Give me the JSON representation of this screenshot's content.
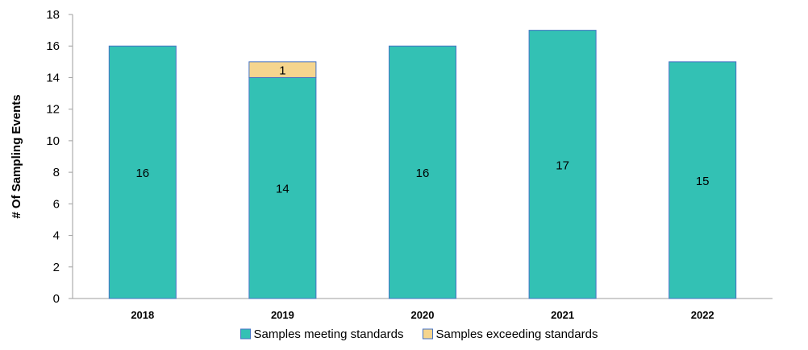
{
  "chart_data": {
    "type": "bar",
    "stacked": true,
    "title": "",
    "xlabel": "",
    "ylabel": "# Of Sampling Events",
    "ylim": [
      0,
      18
    ],
    "yticks": [
      0,
      2,
      4,
      6,
      8,
      10,
      12,
      14,
      16,
      18
    ],
    "categories": [
      "2018",
      "2019",
      "2020",
      "2021",
      "2022"
    ],
    "grid": false,
    "legend": "bottom",
    "series": [
      {
        "name": "Samples meeting standards",
        "color": "#33C1B4",
        "values": [
          16,
          14,
          16,
          17,
          15
        ]
      },
      {
        "name": "Samples exceeding standards",
        "color": "#F5D58E",
        "values": [
          0,
          1,
          0,
          0,
          0
        ]
      }
    ],
    "bar_edge_color": "#4472C4"
  }
}
